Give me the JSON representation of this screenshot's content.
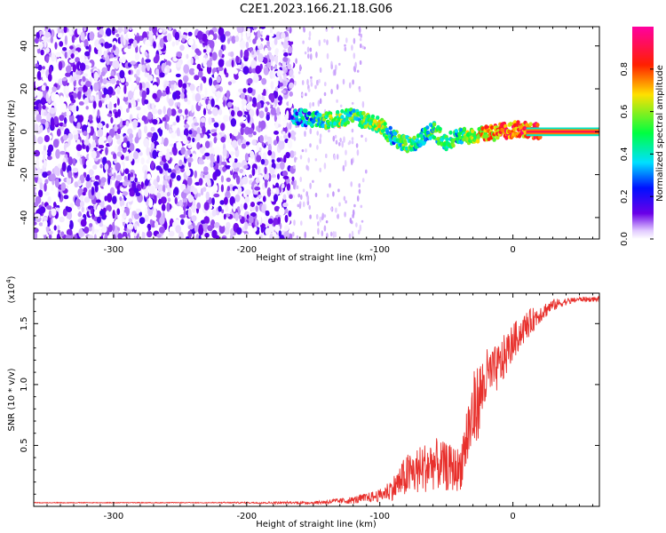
{
  "title": "C2E1.2023.166.21.18.G06",
  "chart_data": [
    {
      "type": "heatmap",
      "xlabel": "Height of straight line (km)",
      "ylabel": "Frequency (Hz)",
      "xlim": [
        -360,
        65
      ],
      "ylim": [
        -50,
        49
      ],
      "xticks": [
        -300,
        -200,
        -100,
        0
      ],
      "xtick_labels": [
        "-300",
        "-200",
        "-100",
        "0"
      ],
      "yticks": [
        -40,
        -20,
        0,
        20,
        40
      ],
      "ytick_labels": [
        "-40",
        "-20",
        "0",
        "20",
        "40"
      ],
      "colorbar": {
        "label": "Normalized spectral amplitude",
        "range": [
          0,
          1
        ],
        "ticks": [
          0.0,
          0.2,
          0.4,
          0.6,
          0.8
        ],
        "tick_labels": [
          "0.0",
          "0.2",
          "0.4",
          "0.6",
          "0.8"
        ],
        "colormap": [
          "#ffffff",
          "#6a00e8",
          "#0010ff",
          "#00e0ff",
          "#00ff40",
          "#ffe000",
          "#ff2000",
          "#ff00a0"
        ]
      },
      "noise_region": {
        "x_range": [
          -360,
          -165
        ],
        "y_range": [
          -50,
          49
        ],
        "sparse_until": -110
      },
      "signal_trace": {
        "x": [
          -165,
          -150,
          -140,
          -130,
          -120,
          -110,
          -100,
          -90,
          -80,
          -70,
          -60,
          -50,
          -40,
          -30,
          -20,
          -10,
          0,
          10,
          20,
          65
        ],
        "y": [
          7,
          6,
          5,
          6,
          7,
          5,
          3,
          -3,
          -6,
          -4,
          1,
          -5,
          -2,
          -2,
          -1,
          0,
          1,
          1,
          0,
          0
        ],
        "amplitude": [
          0.25,
          0.4,
          0.5,
          0.55,
          0.45,
          0.5,
          0.6,
          0.4,
          0.55,
          0.35,
          0.45,
          0.5,
          0.4,
          0.6,
          0.7,
          0.75,
          0.8,
          0.8,
          0.85,
          0.9
        ]
      },
      "grid": false
    },
    {
      "type": "line",
      "xlabel": "Height of straight line (km)",
      "ylabel": "SNR (10 * v/v)",
      "yscale_label": "(x10",
      "yscale_exp": "4",
      "yscale_suffix": ")",
      "xlim": [
        -360,
        65
      ],
      "ylim": [
        0,
        1.75
      ],
      "xticks": [
        -300,
        -200,
        -100,
        0
      ],
      "xtick_labels": [
        "-300",
        "-200",
        "-100",
        "0"
      ],
      "yticks": [
        0.5,
        1.0,
        1.5
      ],
      "ytick_labels": [
        "0.5",
        "1.0",
        "1.5"
      ],
      "color": "#e8302c",
      "series": [
        {
          "x": [
            -360,
            -250,
            -150,
            -120,
            -100,
            -90,
            -80,
            -70,
            -60,
            -50,
            -40,
            -35,
            -30,
            -25,
            -20,
            -15,
            -10,
            -5,
            0,
            10,
            20,
            30,
            40,
            50,
            65
          ],
          "values": [
            0.03,
            0.03,
            0.03,
            0.05,
            0.09,
            0.15,
            0.25,
            0.3,
            0.35,
            0.32,
            0.3,
            0.55,
            0.75,
            0.9,
            1.05,
            1.1,
            1.15,
            1.25,
            1.35,
            1.48,
            1.58,
            1.65,
            1.68,
            1.7,
            1.7
          ],
          "spread": [
            0.0,
            0.0,
            0.01,
            0.03,
            0.05,
            0.1,
            0.18,
            0.2,
            0.22,
            0.2,
            0.18,
            0.3,
            0.35,
            0.3,
            0.25,
            0.2,
            0.2,
            0.18,
            0.15,
            0.12,
            0.08,
            0.05,
            0.03,
            0.02,
            0.02
          ]
        }
      ],
      "grid": false
    }
  ]
}
